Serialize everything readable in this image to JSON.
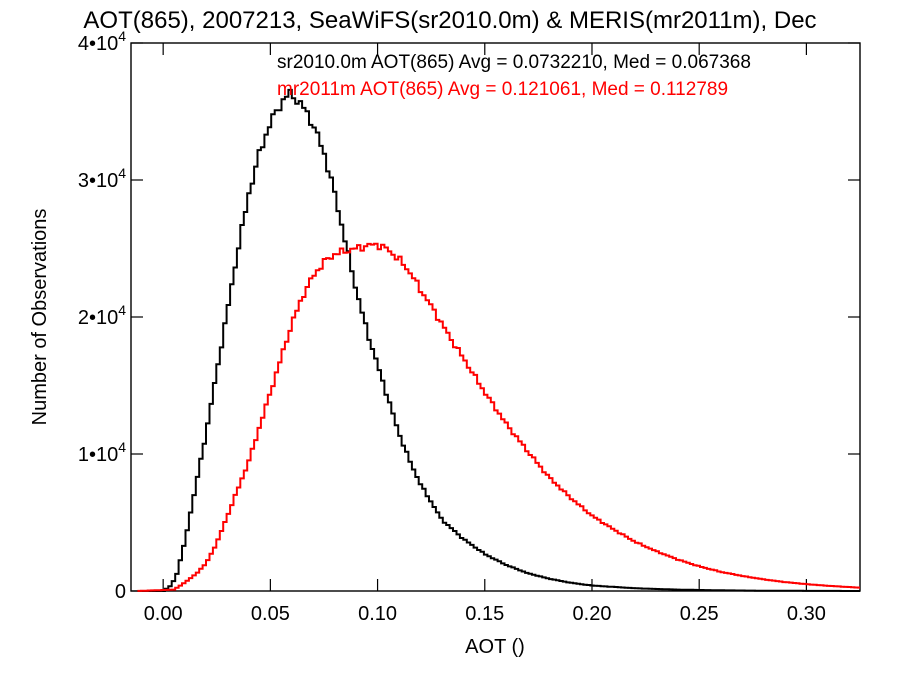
{
  "colors": {
    "series_black": "#000000",
    "series_red": "#ff0000",
    "axes": "#000000",
    "background": "#ffffff"
  },
  "chart_data": {
    "type": "line",
    "step": true,
    "title": "AOT(865), 2007213, SeaWiFS(sr2010.0m) & MERIS(mr2011m), Dec",
    "xlabel": "AOT ()",
    "ylabel": "Number of Observations",
    "xlim": [
      -0.015,
      0.325
    ],
    "ylim": [
      0,
      40000
    ],
    "xticks": [
      0.0,
      0.05,
      0.1,
      0.15,
      0.2,
      0.25,
      0.3
    ],
    "xtick_labels": [
      "0.00",
      "0.05",
      "0.10",
      "0.15",
      "0.20",
      "0.25",
      "0.30"
    ],
    "yticks": [
      0,
      10000,
      20000,
      30000,
      40000
    ],
    "ytick_labels": [
      {
        "base": "0",
        "exp": ""
      },
      {
        "base": "1•10",
        "exp": "4"
      },
      {
        "base": "2•10",
        "exp": "4"
      },
      {
        "base": "3•10",
        "exp": "4"
      },
      {
        "base": "4•10",
        "exp": "4"
      }
    ],
    "grid": false,
    "annotations": [
      {
        "text": "sr2010.0m AOT(865) Avg = 0.0732210, Med = 0.067368",
        "color": "#000000"
      },
      {
        "text": "mr2011m AOT(865) Avg = 0.121061, Med = 0.112789",
        "color": "#ff0000"
      }
    ],
    "series": [
      {
        "color": "#000000",
        "x": [
          -0.012,
          0.0,
          0.003,
          0.006,
          0.01,
          0.015,
          0.02,
          0.025,
          0.03,
          0.035,
          0.04,
          0.045,
          0.05,
          0.055,
          0.058,
          0.06,
          0.063,
          0.066,
          0.07,
          0.075,
          0.08,
          0.085,
          0.09,
          0.095,
          0.1,
          0.105,
          0.11,
          0.115,
          0.12,
          0.125,
          0.13,
          0.14,
          0.15,
          0.16,
          0.17,
          0.18,
          0.19,
          0.2,
          0.22,
          0.24,
          0.26,
          0.28,
          0.3,
          0.324
        ],
        "y": [
          0,
          0,
          300,
          1000,
          3500,
          7500,
          11500,
          16000,
          20500,
          25000,
          29000,
          32000,
          34200,
          35600,
          36200,
          36300,
          35700,
          35200,
          34000,
          32000,
          29000,
          25500,
          22000,
          19000,
          16500,
          14000,
          11500,
          9500,
          7800,
          6500,
          5200,
          3800,
          2700,
          1900,
          1300,
          900,
          600,
          400,
          200,
          100,
          50,
          20,
          10,
          0
        ]
      },
      {
        "color": "#ff0000",
        "x": [
          -0.012,
          0.005,
          0.01,
          0.015,
          0.02,
          0.025,
          0.03,
          0.035,
          0.04,
          0.045,
          0.05,
          0.055,
          0.06,
          0.065,
          0.07,
          0.075,
          0.08,
          0.085,
          0.09,
          0.095,
          0.1,
          0.105,
          0.11,
          0.115,
          0.12,
          0.125,
          0.13,
          0.135,
          0.14,
          0.15,
          0.16,
          0.17,
          0.18,
          0.19,
          0.2,
          0.21,
          0.22,
          0.23,
          0.24,
          0.25,
          0.26,
          0.27,
          0.28,
          0.29,
          0.3,
          0.31,
          0.324
        ],
        "y": [
          0,
          100,
          600,
          1200,
          2000,
          3500,
          5500,
          7500,
          9500,
          12000,
          14500,
          17000,
          19500,
          21500,
          23000,
          24000,
          24600,
          24800,
          25000,
          25200,
          25300,
          24900,
          24200,
          23300,
          22000,
          20800,
          19500,
          18200,
          17000,
          14500,
          12200,
          10200,
          8300,
          6800,
          5500,
          4500,
          3600,
          2900,
          2300,
          1800,
          1400,
          1100,
          850,
          650,
          500,
          380,
          250
        ]
      }
    ]
  }
}
